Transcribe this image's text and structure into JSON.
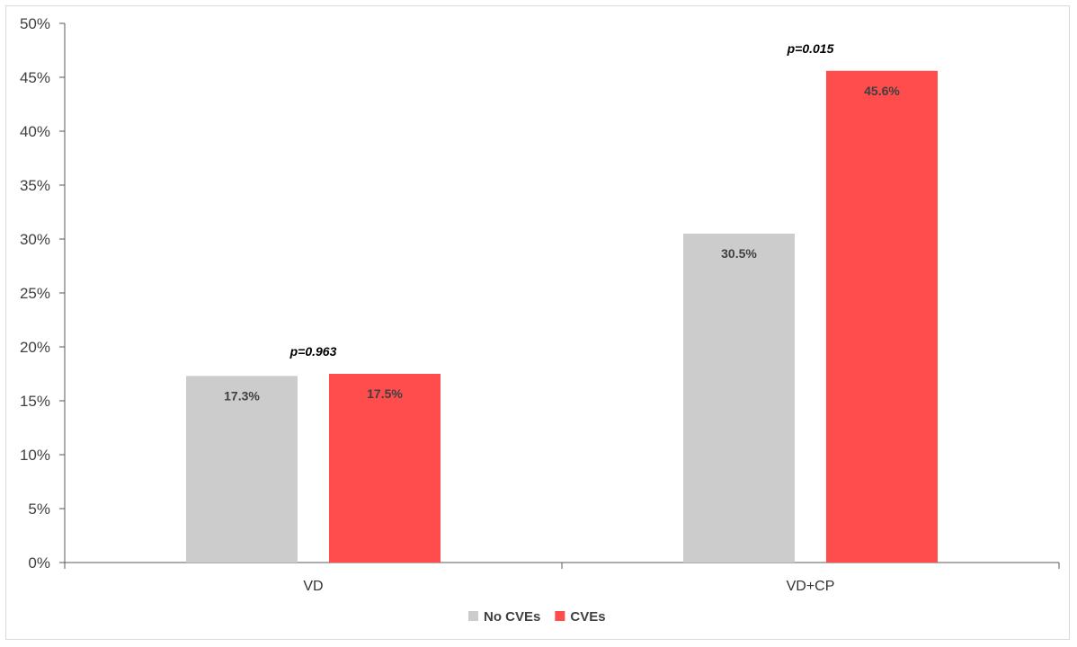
{
  "chart_data": {
    "type": "bar",
    "categories": [
      "VD",
      "VD+CP"
    ],
    "series": [
      {
        "name": "No CVEs",
        "values": [
          17.3,
          30.5
        ],
        "color": "#cccccc",
        "labels": [
          "17.3%",
          "30.5%"
        ]
      },
      {
        "name": "CVEs",
        "values": [
          17.5,
          45.6
        ],
        "color": "#ff4d4d",
        "labels": [
          "17.5%",
          "45.6%"
        ]
      }
    ],
    "annotations": [
      "p=0.963",
      "p=0.015"
    ],
    "y_ticks": [
      "0%",
      "5%",
      "10%",
      "15%",
      "20%",
      "25%",
      "30%",
      "35%",
      "40%",
      "45%",
      "50%"
    ],
    "ylim": [
      0,
      50
    ],
    "title": "",
    "xlabel": "",
    "ylabel": "",
    "grid": false,
    "legend_position": "bottom-center"
  }
}
